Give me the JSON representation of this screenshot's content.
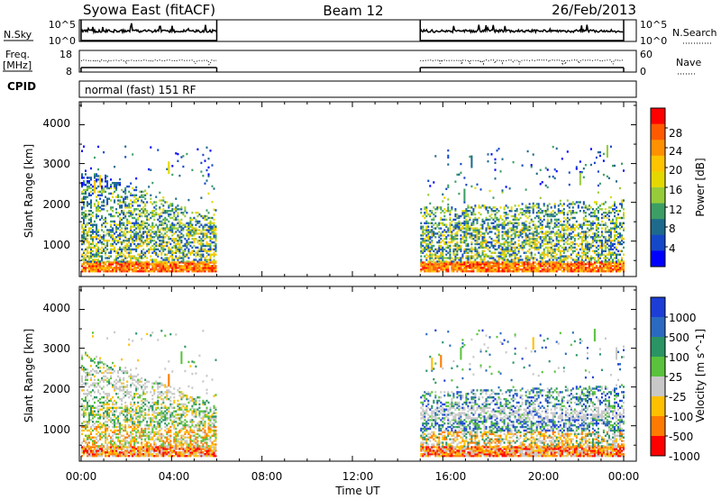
{
  "header": {
    "station": "Syowa East (fitACF)",
    "beam": "Beam 12",
    "date": "26/Feb/2013"
  },
  "noise_panel": {
    "left_label": "N.Sky",
    "left_ticks": [
      "10^5",
      "10^0"
    ],
    "right_ticks": [
      "10^5",
      "10^0"
    ],
    "right_label": "N.Search"
  },
  "freq_panel": {
    "left_label_line1": "Freq.",
    "left_label_line2": "[MHz]",
    "left_ticks": [
      "18",
      "8"
    ],
    "right_ticks": [
      "60",
      "0"
    ],
    "right_label": "Nave"
  },
  "cpid_panel": {
    "label": "CPID",
    "text": "normal (fast) 151 RF"
  },
  "axes": {
    "y_label": "Slant Range [km]",
    "y_ticks": [
      "4000",
      "3000",
      "2000",
      "1000"
    ],
    "x_label": "Time UT",
    "x_ticks": [
      "00:00",
      "04:00",
      "08:00",
      "12:00",
      "16:00",
      "20:00",
      "00:00"
    ]
  },
  "power_colorbar": {
    "label": "Power [dB]",
    "ticks": [
      "28",
      "24",
      "20",
      "16",
      "12",
      "8",
      "4"
    ],
    "colors": [
      "#ff0000",
      "#ff5a00",
      "#ff9000",
      "#ffc400",
      "#e4d800",
      "#96cc3a",
      "#3c9e64",
      "#1d6a8c",
      "#1448c8",
      "#0000ff"
    ]
  },
  "velocity_colorbar": {
    "label": "Velocity [m s^-1]",
    "ticks": [
      "1000",
      "500",
      "100",
      "25",
      "-25",
      "-100",
      "-500",
      "-1000"
    ],
    "colors": [
      "#1c3ed6",
      "#2a6ac0",
      "#2a9464",
      "#5ac23c",
      "#c8c8c8",
      "#ffc000",
      "#ff7a00",
      "#ff0000"
    ]
  },
  "chart_data": {
    "type": "heatmap",
    "x_range_hours": [
      0,
      24
    ],
    "y_range_km": [
      180,
      4500
    ],
    "data_gaps_hours": [
      [
        6,
        15
      ]
    ],
    "coverage_hours": [
      [
        0,
        6
      ],
      [
        15,
        24
      ]
    ],
    "data_intervals_ut": [
      [
        "00:00",
        "06:00"
      ],
      [
        "15:00",
        "24:00"
      ]
    ]
  }
}
